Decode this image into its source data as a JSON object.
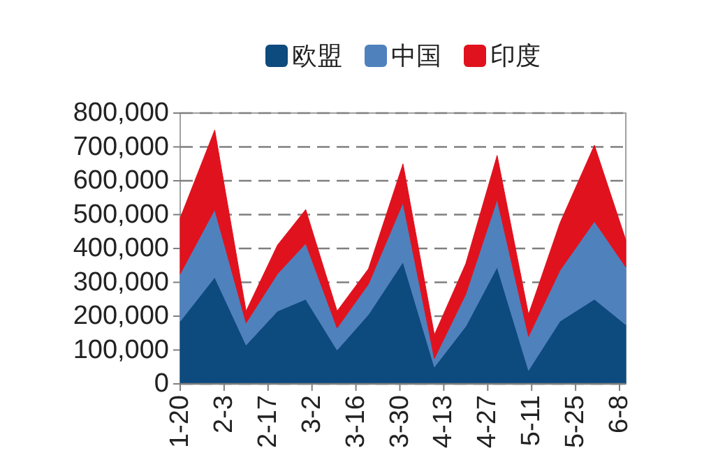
{
  "chart_data": {
    "type": "area",
    "stacked": true,
    "x": [
      "--01-20",
      "--01-31",
      "--02-10",
      "--02-20",
      "--02-29",
      "--03-10",
      "--03-20",
      "--03-31",
      "--04-10",
      "--04-20",
      "--04-30",
      "--05-10",
      "--05-20",
      "--05-31",
      "--06-10"
    ],
    "series": [
      {
        "name": "欧盟",
        "color": "#0d4a7e",
        "values": [
          185000,
          315000,
          115000,
          215000,
          250000,
          100000,
          205000,
          360000,
          50000,
          170000,
          345000,
          40000,
          185000,
          250000,
          175000
        ]
      },
      {
        "name": "中国",
        "color": "#4f81bd",
        "values": [
          140000,
          200000,
          65000,
          110000,
          165000,
          65000,
          90000,
          175000,
          25000,
          95000,
          200000,
          100000,
          150000,
          230000,
          170000
        ]
      },
      {
        "name": "印度",
        "color": "#e0121e",
        "values": [
          165000,
          235000,
          35000,
          85000,
          100000,
          50000,
          45000,
          115000,
          70000,
          90000,
          130000,
          65000,
          140000,
          225000,
          80000
        ]
      }
    ],
    "xlim": [
      "--01-20",
      "--06-10"
    ],
    "xticks": [
      {
        "value": "--01-20",
        "label": "1-20"
      },
      {
        "value": "--02-03",
        "label": "2-3"
      },
      {
        "value": "--02-17",
        "label": "2-17"
      },
      {
        "value": "--03-02",
        "label": "3-2"
      },
      {
        "value": "--03-16",
        "label": "3-16"
      },
      {
        "value": "--03-30",
        "label": "3-30"
      },
      {
        "value": "--04-13",
        "label": "4-13"
      },
      {
        "value": "--04-27",
        "label": "4-27"
      },
      {
        "value": "--05-11",
        "label": "5-11"
      },
      {
        "value": "--05-25",
        "label": "5-25"
      },
      {
        "value": "--06-08",
        "label": "6-8"
      }
    ],
    "ylim": [
      0,
      800000
    ],
    "yticks": [
      0,
      {
        "value": 100000,
        "label": "100,000"
      },
      {
        "value": 200000,
        "label": "200,000"
      },
      {
        "value": 300000,
        "label": "300,000"
      },
      {
        "value": 400000,
        "label": "400,000"
      },
      {
        "value": 500000,
        "label": "500,000"
      },
      {
        "value": 600000,
        "label": "600,000"
      },
      {
        "value": 700000,
        "label": "700,000"
      },
      {
        "value": 800000,
        "label": "800,000"
      }
    ],
    "grid": "y",
    "legend": "top"
  }
}
